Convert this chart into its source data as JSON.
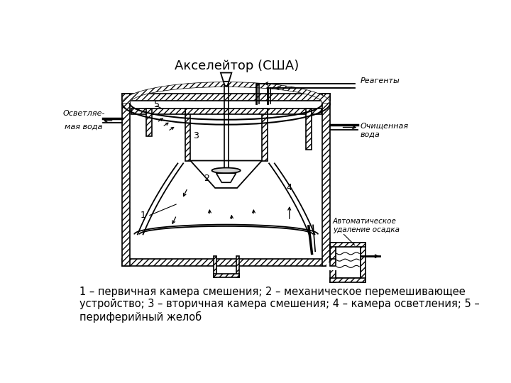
{
  "title": "Акселейтор (США)",
  "title_fontsize": 13,
  "caption": "1 – первичная камера смешения; 2 – механическое перемешивающее\nустройство; 3 – вторичная камера смешения; 4 – камера осветления; 5 –\nпериферийный желоб",
  "caption_fontsize": 10.5,
  "bg_color": "#ffffff",
  "label_reagenty": "Реагенты",
  "label_ochischennaya": "Очищенная\nвода",
  "label_avtomaticheskoe": "Автоматическое\nудаление осадка",
  "label_osvetal1": "Осветляе-",
  "label_osvetal2": "мая вода",
  "label_5": "5",
  "label_1": "1",
  "label_2": "2",
  "label_3": "3",
  "label_4": "4"
}
